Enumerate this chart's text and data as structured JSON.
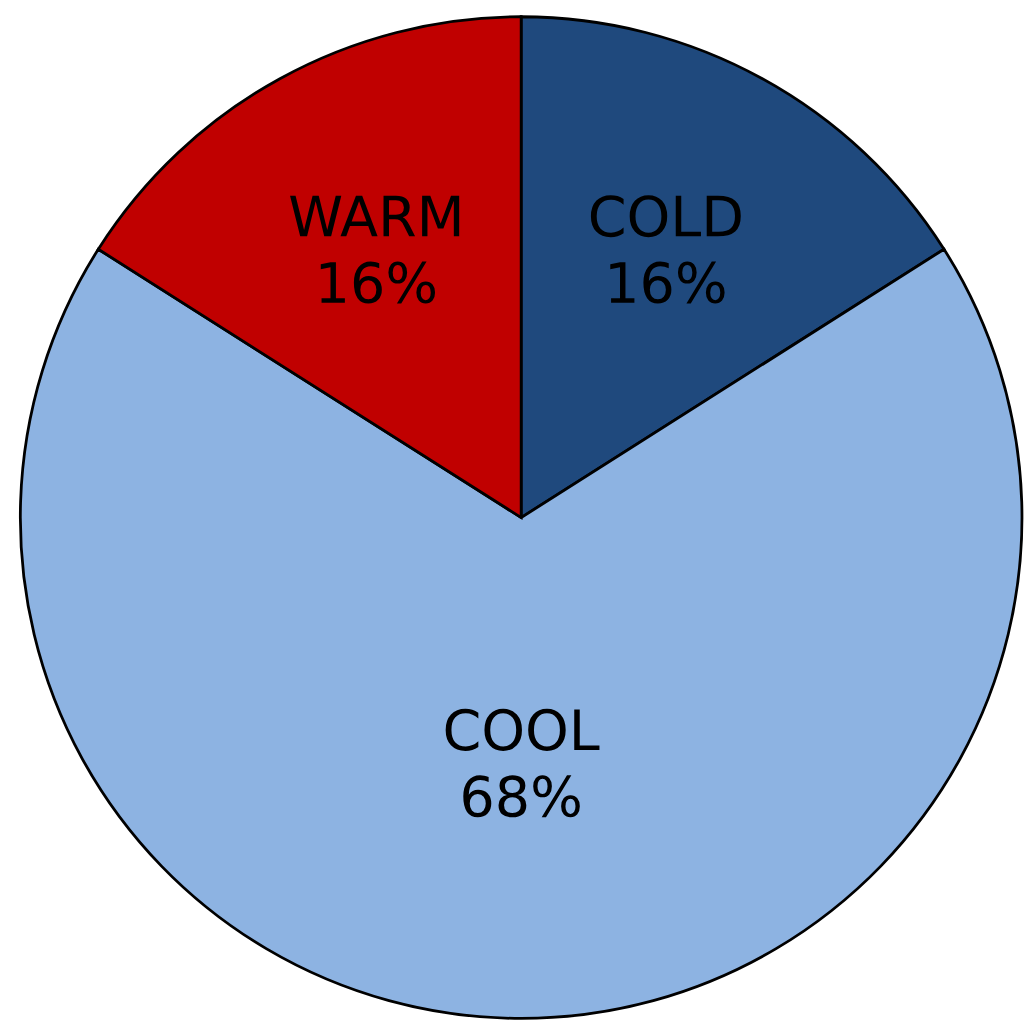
{
  "chart_data": {
    "type": "pie",
    "categories": [
      "COLD",
      "COOL",
      "WARM"
    ],
    "values": [
      16,
      68,
      16
    ],
    "value_labels": [
      "16%",
      "68%",
      "16%"
    ],
    "colors": [
      "#1f497d",
      "#8db3e2",
      "#c00000"
    ]
  }
}
